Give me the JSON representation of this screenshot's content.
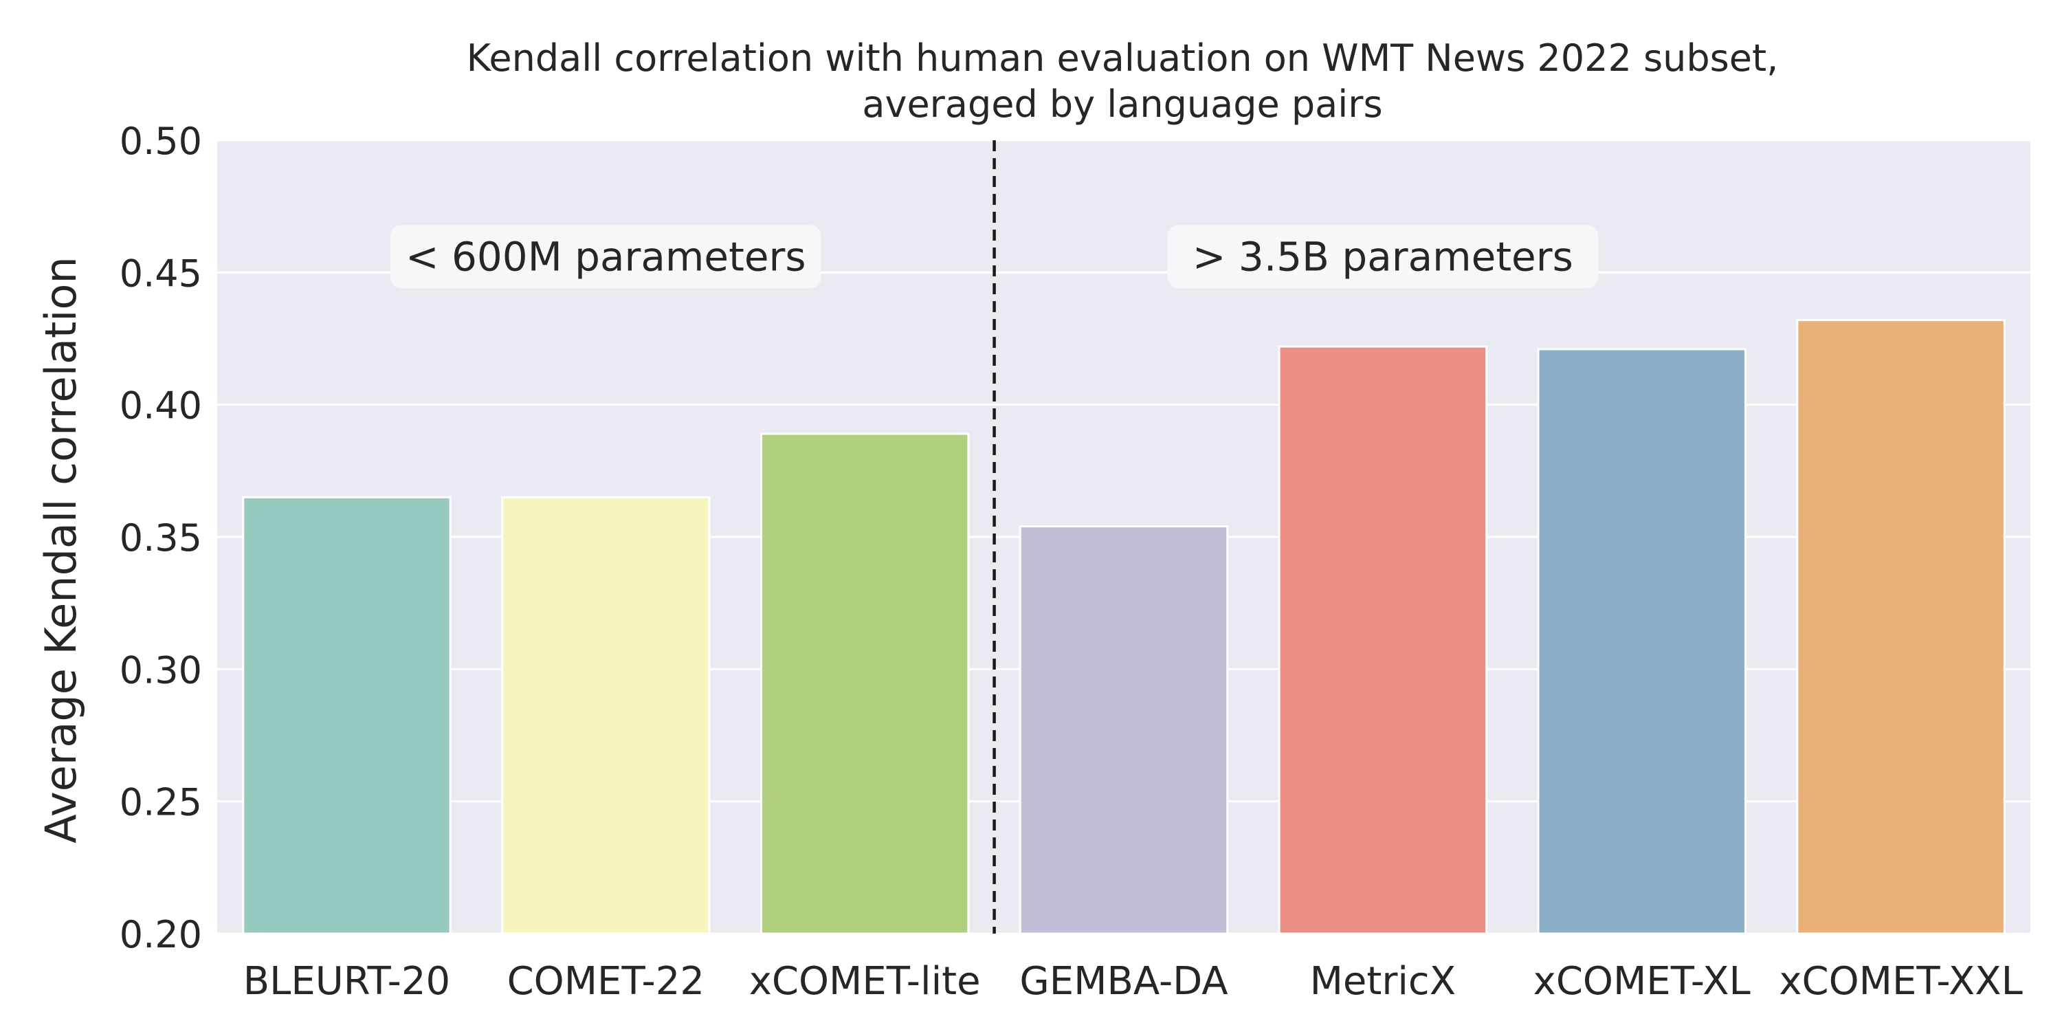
{
  "chart_data": {
    "type": "bar",
    "title": "Kendall correlation with human evaluation on WMT News 2022 subset,",
    "subtitle": "averaged by language pairs",
    "xlabel": "",
    "ylabel": "Average Kendall correlation",
    "ylim": [
      0.2,
      0.5
    ],
    "yticks": [
      "0.20",
      "0.25",
      "0.30",
      "0.35",
      "0.40",
      "0.45",
      "0.50"
    ],
    "grid": true,
    "categories": [
      "BLEURT-20",
      "COMET-22",
      "xCOMET-lite",
      "GEMBA-DA",
      "MetricX",
      "xCOMET-XL",
      "xCOMET-XXL"
    ],
    "values": [
      0.365,
      0.365,
      0.389,
      0.354,
      0.422,
      0.421,
      0.432
    ],
    "colors": [
      "#96cac1",
      "#f6f6bc",
      "#b0d07d",
      "#c1bed6",
      "#eb8f84",
      "#8bafc7",
      "#e9b176"
    ],
    "separator_after_index": 2,
    "annotations": [
      {
        "text": "< 600M parameters",
        "group": "left"
      },
      {
        "text": "> 3.5B parameters",
        "group": "right"
      }
    ]
  }
}
